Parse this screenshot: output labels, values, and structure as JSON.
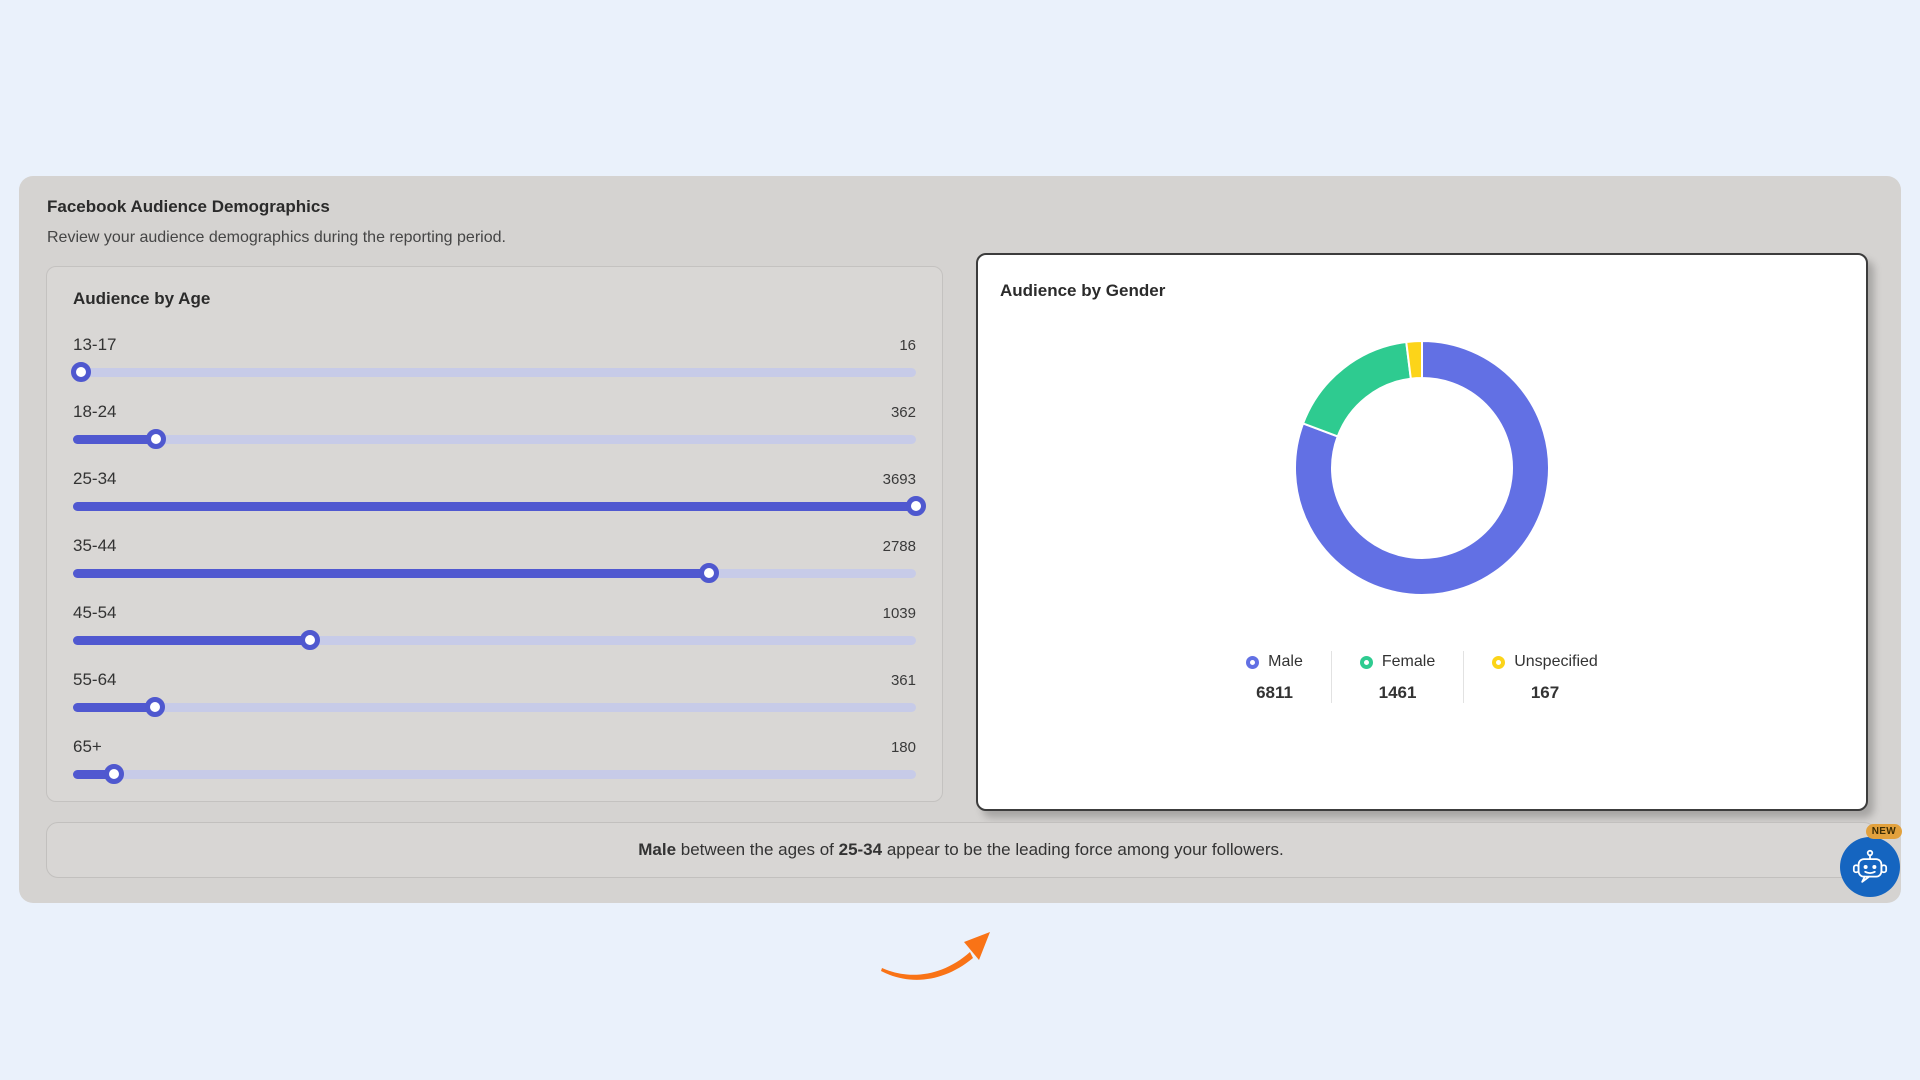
{
  "page": {
    "background": "#eaf1fb",
    "panel_background": "#d5d3d1"
  },
  "panel": {
    "title": "Facebook Audience Demographics",
    "subtitle": "Review your audience demographics during the reporting period.",
    "summary": {
      "lead": "Male",
      "mid": " between the ages of ",
      "range": "25-34",
      "tail": " appear to be the leading force among your followers."
    }
  },
  "chart_data": [
    {
      "type": "bar",
      "title": "Audience by Age",
      "categories": [
        "13-17",
        "18-24",
        "25-34",
        "35-44",
        "45-54",
        "55-64",
        "65+"
      ],
      "values": [
        16,
        362,
        3693,
        2788,
        1039,
        361,
        180
      ],
      "xlim": [
        0,
        3693
      ],
      "orientation": "horizontal-sliders",
      "fill_color": "#5058d0",
      "track_color": "#c7cbe8"
    },
    {
      "type": "pie",
      "title": "Audience by Gender",
      "labels": [
        "Male",
        "Female",
        "Unspecified"
      ],
      "values": [
        6811,
        1461,
        167
      ],
      "colors": [
        "#6270e4",
        "#2ecb90",
        "#fcd419"
      ],
      "donut": true,
      "start_angle_deg": 0,
      "direction": "clockwise",
      "legend_position": "bottom"
    }
  ],
  "chatbot": {
    "badge": "NEW",
    "circle_color": "#1565c0",
    "badge_color": "#e2a13d"
  },
  "decorations": {
    "arrow_color": "#f97316"
  }
}
